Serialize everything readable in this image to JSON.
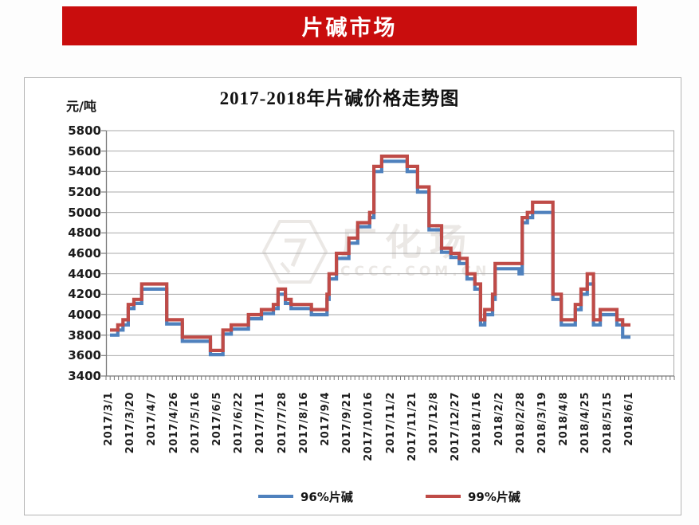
{
  "banner": {
    "title": "片碱市场",
    "bg": "#C90D0D"
  },
  "chart": {
    "title": "2017-2018年片碱价格走势图",
    "unit_label": "元/吨",
    "watermark": {
      "line1": "广化场",
      "line2": "CCCC.COM.CN"
    },
    "legend": {
      "items": [
        {
          "label": "96%片碱",
          "color": "#4F81BD"
        },
        {
          "label": "99%片碱",
          "color": "#BF4B47"
        }
      ]
    }
  },
  "chart_data": {
    "type": "line",
    "line_style": "step",
    "title": "2017-2018年片碱价格走势图",
    "ylabel": "元/吨",
    "xlabel": "",
    "ylim": [
      3400,
      5800
    ],
    "ytick_step": 200,
    "grid": "horizontal",
    "legend_position": "bottom",
    "y_tick_labels": [
      "5800",
      "5600",
      "5400",
      "5200",
      "5000",
      "4800",
      "4600",
      "4400",
      "4200",
      "4000",
      "3800",
      "3600",
      "3400"
    ],
    "x_tick_labels": [
      "2017/3/1",
      "2017/3/20",
      "2017/4/7",
      "2017/4/26",
      "2017/5/16",
      "2017/6/5",
      "2017/6/22",
      "2017/7/11",
      "2017/7/28",
      "2017/8/16",
      "2017/9/4",
      "2017/9/21",
      "2017/10/16",
      "2017/11/2",
      "2017/11/21",
      "2017/12/8",
      "2017/12/27",
      "2018/1/16",
      "2018/2/2",
      "2018/2/28",
      "2018/3/19",
      "2018/4/8",
      "2018/4/25",
      "2018/5/15",
      "2018/6/1"
    ],
    "series": [
      {
        "name": "96%片碱",
        "color": "#4F81BD"
      },
      {
        "name": "99%片碱",
        "color": "#BF4B47"
      }
    ],
    "breakpoints_t_v96_v99": [
      [
        0.0,
        3800,
        3850
      ],
      [
        0.015,
        3850,
        3900
      ],
      [
        0.025,
        3900,
        3950
      ],
      [
        0.035,
        4060,
        4100
      ],
      [
        0.046,
        4110,
        4150
      ],
      [
        0.061,
        4250,
        4300
      ],
      [
        0.109,
        3910,
        3950
      ],
      [
        0.139,
        3740,
        3780
      ],
      [
        0.193,
        3610,
        3650
      ],
      [
        0.217,
        3810,
        3850
      ],
      [
        0.233,
        3860,
        3900
      ],
      [
        0.266,
        3960,
        4000
      ],
      [
        0.291,
        4010,
        4050
      ],
      [
        0.314,
        4060,
        4100
      ],
      [
        0.323,
        4200,
        4250
      ],
      [
        0.337,
        4110,
        4150
      ],
      [
        0.348,
        4060,
        4100
      ],
      [
        0.387,
        4000,
        4050
      ],
      [
        0.417,
        4150,
        4200
      ],
      [
        0.421,
        4350,
        4400
      ],
      [
        0.435,
        4550,
        4600
      ],
      [
        0.459,
        4700,
        4750
      ],
      [
        0.476,
        4860,
        4900
      ],
      [
        0.499,
        4950,
        5000
      ],
      [
        0.507,
        5400,
        5450
      ],
      [
        0.522,
        5500,
        5550
      ],
      [
        0.571,
        5400,
        5450
      ],
      [
        0.591,
        5200,
        5250
      ],
      [
        0.613,
        4830,
        4870
      ],
      [
        0.637,
        4610,
        4650
      ],
      [
        0.655,
        4560,
        4600
      ],
      [
        0.671,
        4500,
        4550
      ],
      [
        0.686,
        4350,
        4400
      ],
      [
        0.701,
        4250,
        4300
      ],
      [
        0.712,
        3900,
        3950
      ],
      [
        0.72,
        4000,
        4050
      ],
      [
        0.735,
        4150,
        4200
      ],
      [
        0.74,
        4450,
        4500
      ],
      [
        0.786,
        4400,
        4500
      ],
      [
        0.792,
        4900,
        4950
      ],
      [
        0.802,
        4950,
        5000
      ],
      [
        0.812,
        5000,
        5100
      ],
      [
        0.851,
        4150,
        4200
      ],
      [
        0.867,
        3900,
        3950
      ],
      [
        0.894,
        4050,
        4100
      ],
      [
        0.905,
        4200,
        4250
      ],
      [
        0.917,
        4300,
        4400
      ],
      [
        0.929,
        3900,
        3950
      ],
      [
        0.942,
        4000,
        4050
      ],
      [
        0.974,
        3900,
        3950
      ],
      [
        0.985,
        3780,
        3900
      ]
    ],
    "data_end_t": 1.0
  }
}
